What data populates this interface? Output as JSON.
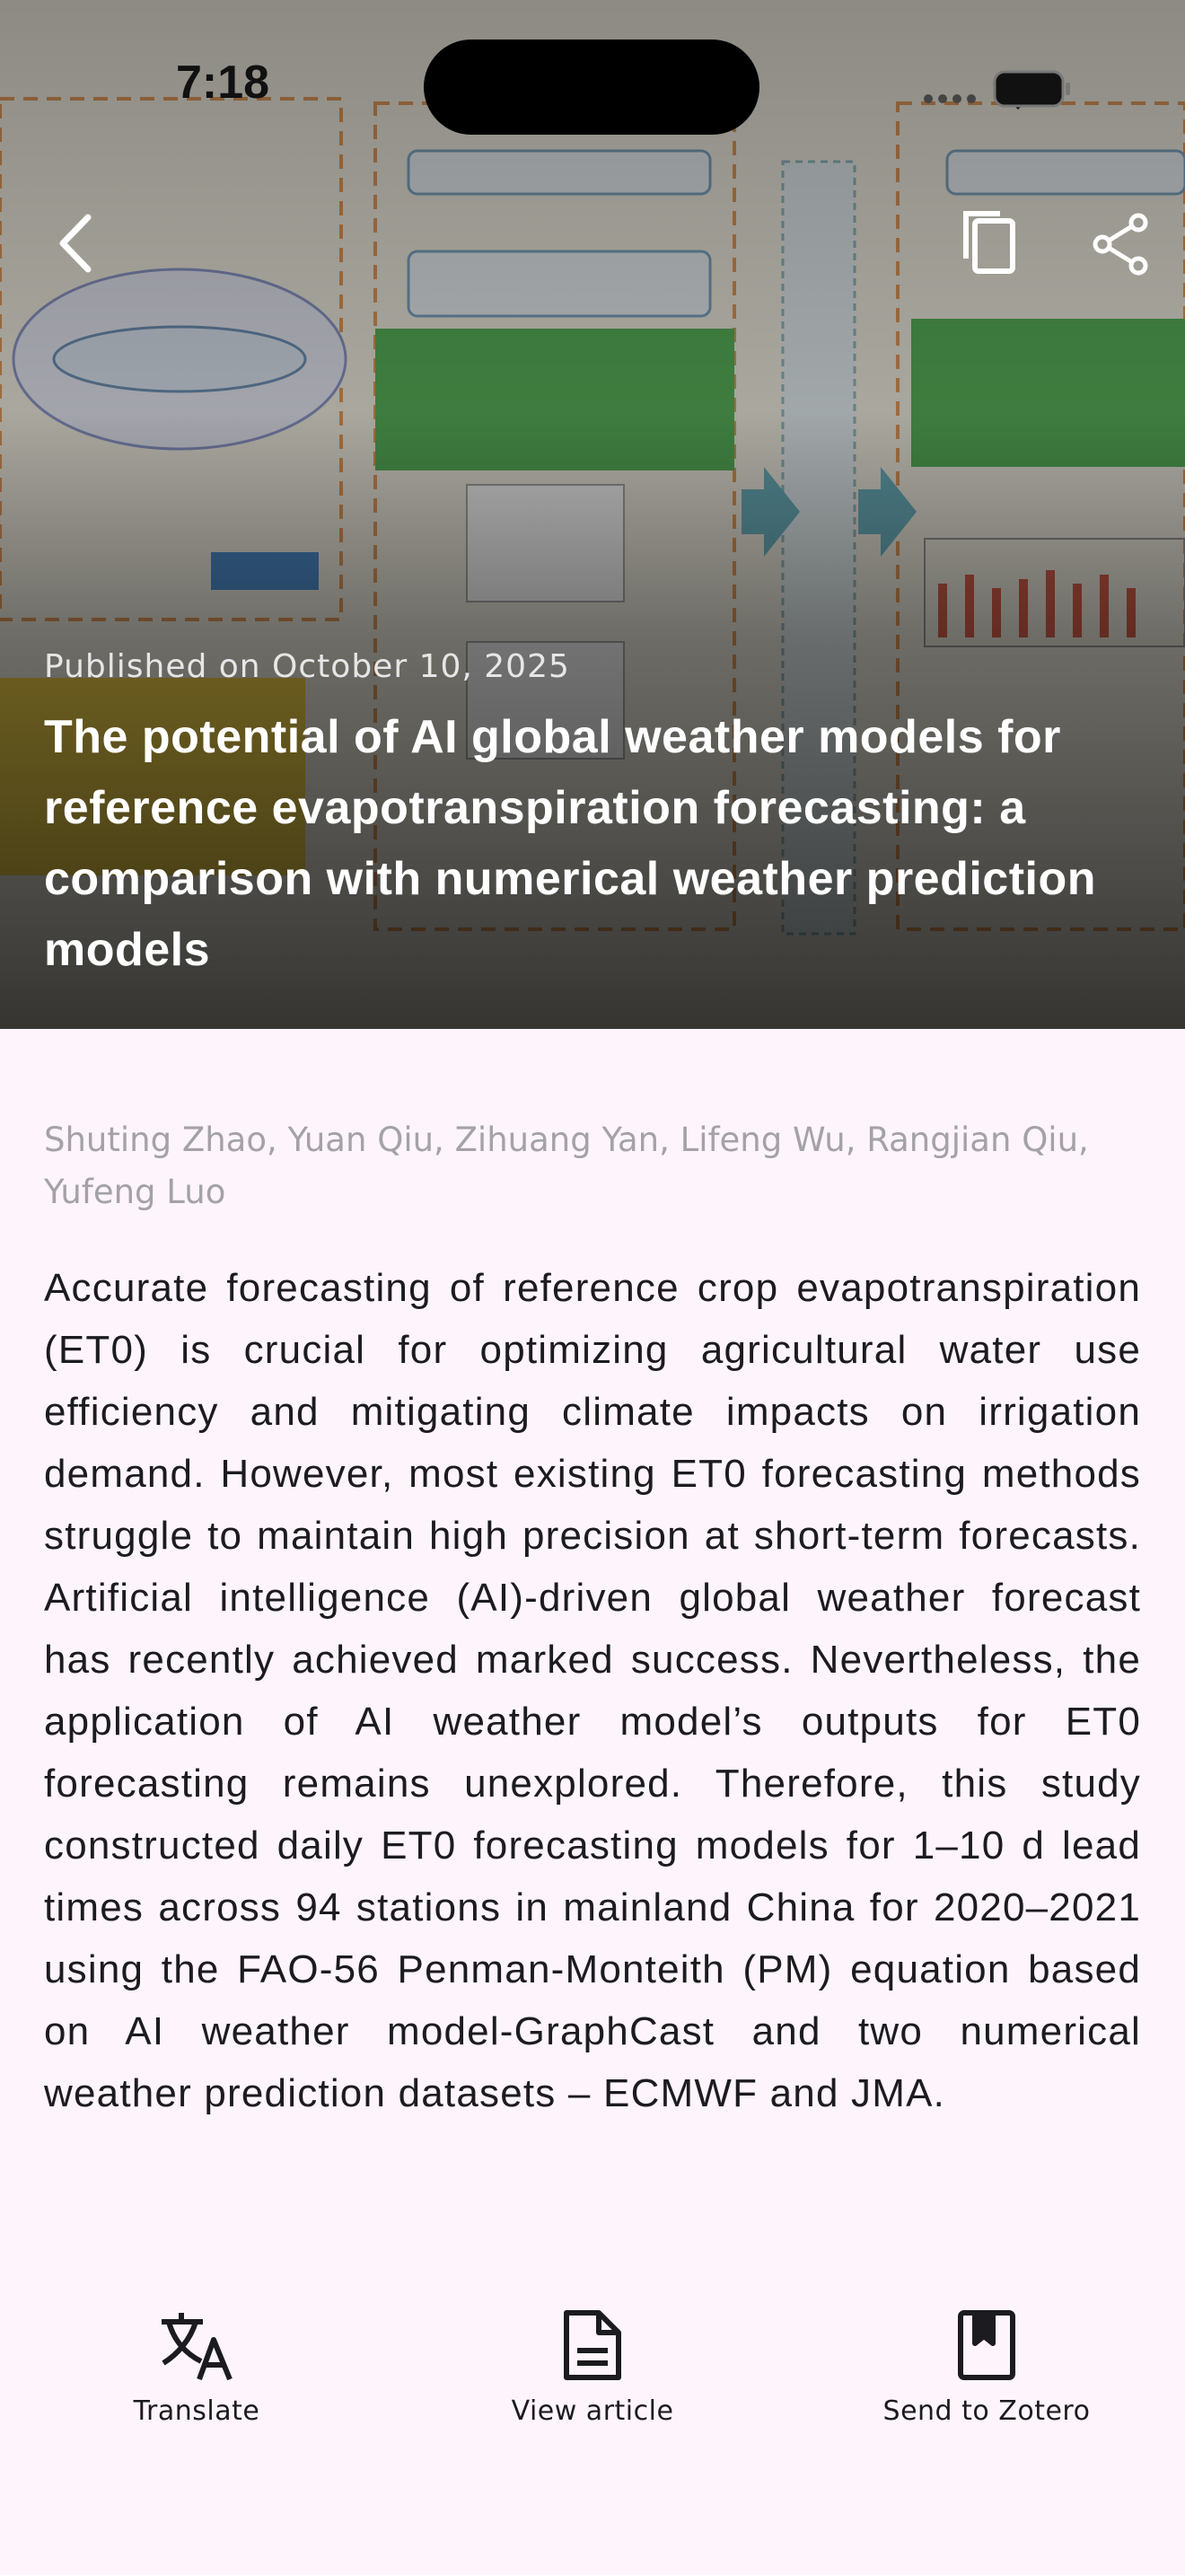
{
  "status_bar": {
    "time": "7:18"
  },
  "article": {
    "published": "Published on October 10, 2025",
    "title": "The potential of AI global weather models for reference evapotranspiration forecasting: a comparison with numerical weather prediction models",
    "authors": "Shuting Zhao, Yuan Qiu, Zihuang Yan, Lifeng Wu, Rangjian Qiu, Yufeng Luo",
    "abstract": "Accurate forecasting of reference crop evapotranspiration (ET0) is crucial for optimizing agricultural water use efficiency and mitigating climate impacts on irrigation demand. However, most existing ET0 forecasting methods struggle to maintain high precision at short-term forecasts. Artificial intelligence (AI)-driven global weather forecast has recently achieved marked success. Nevertheless, the application of AI weather model’s outputs for ET0 forecasting remains unexplored. Therefore, this study constructed daily ET0 forecasting models for 1–10 d lead times across 94 stations in mainland China for 2020–2021 using the FAO-56 Penman-Monteith (PM) equation based on AI weather model-GraphCast and two numerical weather prediction datasets – ECMWF and JMA."
  },
  "actions": [
    {
      "label": "Translate"
    },
    {
      "label": "View article"
    },
    {
      "label": "Send to Zotero"
    }
  ]
}
